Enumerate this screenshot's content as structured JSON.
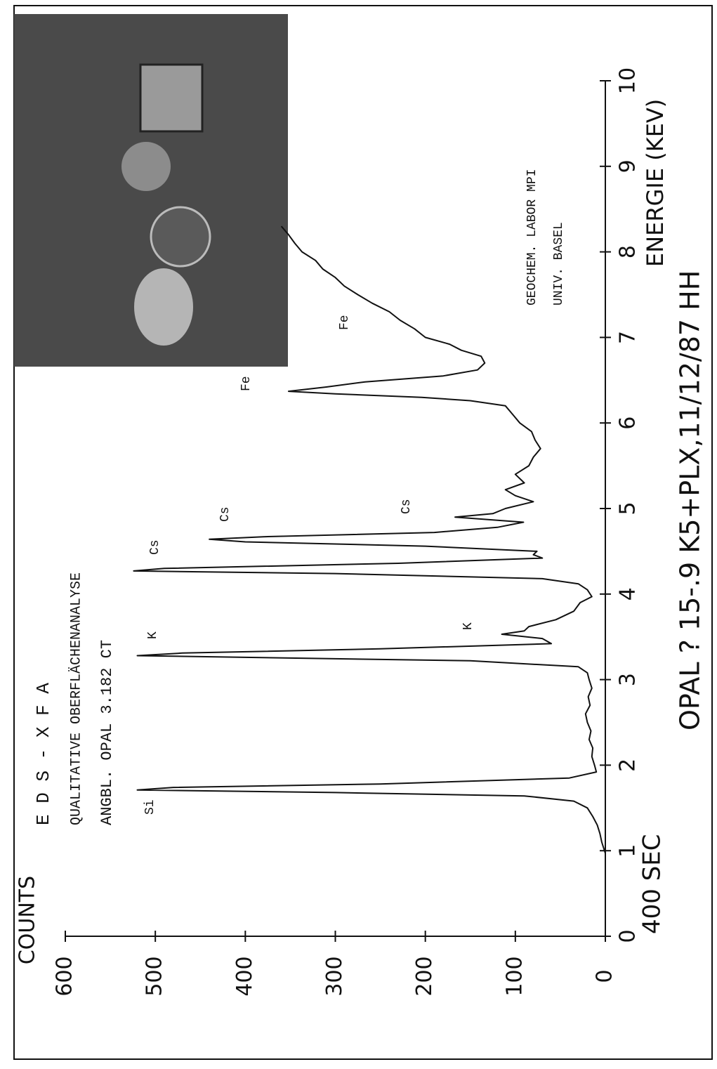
{
  "chart_data": {
    "type": "line",
    "title": "E D S - X F A",
    "subtitle": "QUALITATIVE OBERFLÄCHENANALYSE",
    "sample": "ANGBL. OPAL  3.182 CT",
    "y_label": "COUNTS",
    "time_label": "400 SEC",
    "x_label": "ENERGIE (KEV)",
    "footer": "OPAL ? 15-.9 K5+PLX,11/12/87 HH",
    "lab": [
      "GEOCHEM. LABOR MPI",
      "UNIV. BASEL"
    ],
    "annotations": [
      "Si",
      "K",
      "Cs",
      "Cs",
      "Fe",
      "K",
      "Cs",
      "Fe"
    ],
    "xlim": [
      0,
      10
    ],
    "ylim": [
      0,
      600
    ],
    "xticks": [
      0,
      1,
      2,
      3,
      4,
      5,
      6,
      7,
      8,
      9,
      10
    ],
    "yticks": [
      0,
      100,
      200,
      300,
      400,
      500,
      600
    ],
    "grid": false,
    "x": [
      0.97,
      1.1,
      1.2,
      1.3,
      1.4,
      1.5,
      1.58,
      1.64,
      1.68,
      1.71,
      1.74,
      1.78,
      1.85,
      1.92,
      2.0,
      2.1,
      2.2,
      2.3,
      2.4,
      2.5,
      2.6,
      2.7,
      2.8,
      2.9,
      3.0,
      3.08,
      3.15,
      3.22,
      3.26,
      3.28,
      3.31,
      3.36,
      3.42,
      3.48,
      3.53,
      3.57,
      3.62,
      3.7,
      3.8,
      3.9,
      3.97,
      4.05,
      4.12,
      4.18,
      4.24,
      4.27,
      4.3,
      4.36,
      4.42,
      4.46,
      4.5,
      4.56,
      4.61,
      4.64,
      4.67,
      4.72,
      4.78,
      4.84,
      4.9,
      4.94,
      5.0,
      5.08,
      5.15,
      5.22,
      5.3,
      5.4,
      5.5,
      5.6,
      5.7,
      5.8,
      5.9,
      6.0,
      6.1,
      6.2,
      6.26,
      6.3,
      6.34,
      6.37,
      6.42,
      6.48,
      6.55,
      6.62,
      6.7,
      6.78,
      6.85,
      6.92,
      7.0,
      7.1,
      7.2,
      7.3,
      7.4,
      7.5,
      7.6,
      7.7,
      7.8,
      7.9,
      8.0,
      8.1,
      8.2,
      8.3
    ],
    "series": [
      {
        "color": "#111111",
        "values": [
          0,
          4,
          6,
          9,
          14,
          20,
          35,
          90,
          300,
          520,
          480,
          250,
          40,
          10,
          12,
          15,
          14,
          18,
          16,
          20,
          22,
          17,
          19,
          15,
          18,
          20,
          30,
          150,
          400,
          520,
          470,
          250,
          60,
          70,
          115,
          90,
          85,
          55,
          35,
          28,
          15,
          20,
          30,
          70,
          300,
          524,
          490,
          230,
          70,
          80,
          76,
          200,
          400,
          440,
          380,
          190,
          120,
          91,
          167,
          125,
          111,
          80,
          100,
          111,
          90,
          100,
          85,
          80,
          72,
          78,
          82,
          95,
          103,
          111,
          150,
          204,
          300,
          352,
          310,
          267,
          180,
          142,
          134,
          138,
          160,
          173,
          200,
          212,
          228,
          240,
          259,
          275,
          290,
          300,
          314,
          322,
          337,
          345,
          352,
          360
        ]
      }
    ]
  }
}
